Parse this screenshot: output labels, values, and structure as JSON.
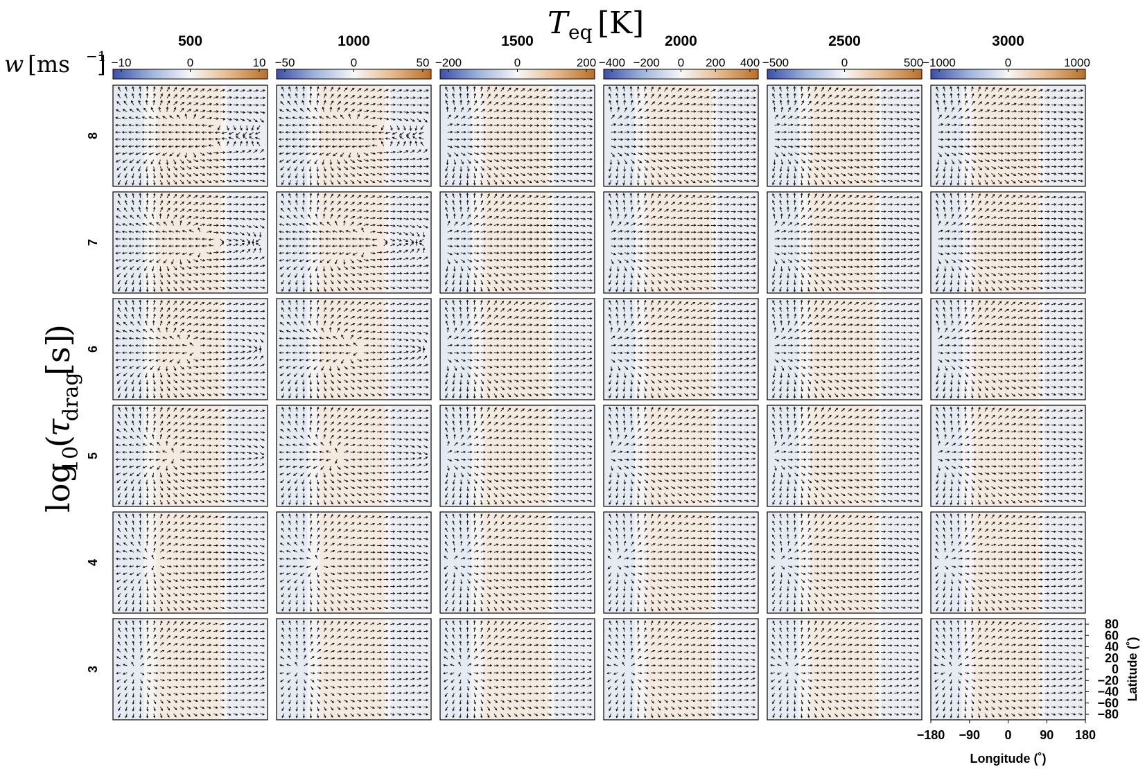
{
  "chart_data": {
    "type": "vector-field-grid",
    "title": "T_eq [K]",
    "title_main": "T",
    "title_sub": "eq",
    "title_unit": "[K]",
    "colorbar_label": {
      "main": "w",
      "unit_base": "[ms",
      "unit_exp": "−1",
      "unit_close": "]"
    },
    "row_axis_label": {
      "func": "log",
      "func_sub": "10",
      "var": "τ",
      "var_sub": "drag",
      "unit": "[s]"
    },
    "columns": [
      {
        "teq": "500",
        "colorbar_ticks": [
          "−10",
          "0",
          "10"
        ],
        "range": [
          -10,
          10
        ]
      },
      {
        "teq": "1000",
        "colorbar_ticks": [
          "−50",
          "0",
          "50"
        ],
        "range": [
          -50,
          50
        ]
      },
      {
        "teq": "1500",
        "colorbar_ticks": [
          "−200",
          "0",
          "200"
        ],
        "range": [
          -200,
          200
        ]
      },
      {
        "teq": "2000",
        "colorbar_ticks": [
          "−400",
          "−200",
          "0",
          "200",
          "400"
        ],
        "range": [
          -400,
          400
        ]
      },
      {
        "teq": "2500",
        "colorbar_ticks": [
          "−500",
          "0",
          "500"
        ],
        "range": [
          -500,
          500
        ]
      },
      {
        "teq": "3000",
        "colorbar_ticks": [
          "−1000",
          "0",
          "1000"
        ],
        "range": [
          -1000,
          1000
        ]
      }
    ],
    "rows": [
      "8",
      "7",
      "6",
      "5",
      "4",
      "3"
    ],
    "x_axis": {
      "label": "Longitude (˚)",
      "ticks": [
        "−180",
        "−90",
        "0",
        "90",
        "180"
      ],
      "range": [
        -180,
        180
      ]
    },
    "y_axis": {
      "label": "Latitude (˚)",
      "ticks": [
        "80",
        "60",
        "40",
        "20",
        "0",
        "−20",
        "−40",
        "−60",
        "−80"
      ],
      "range": [
        -90,
        90
      ]
    },
    "colormap": {
      "negative": "#3b4fa8",
      "zero": "#f7f7f7",
      "positive": "#b8702a"
    },
    "arrow_color": "#111111"
  }
}
